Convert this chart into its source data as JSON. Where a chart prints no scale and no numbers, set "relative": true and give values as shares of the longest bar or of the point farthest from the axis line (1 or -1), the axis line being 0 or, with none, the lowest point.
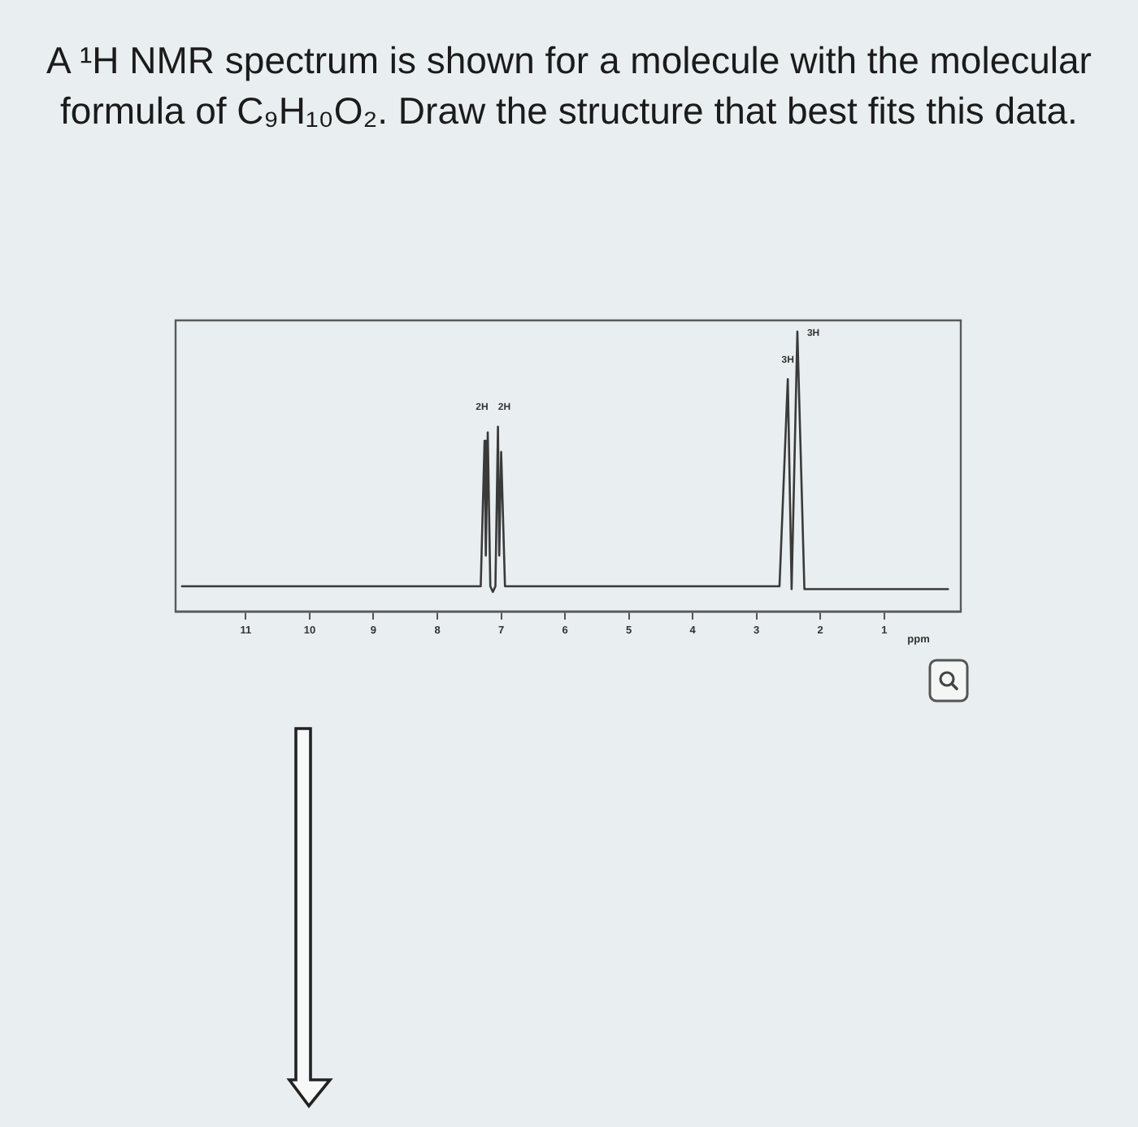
{
  "chart_data": {
    "type": "line",
    "title": "A ¹H NMR spectrum is shown for a molecule with the molecular formula of C₉H₁₀O₂. Draw the structure that best fits this data.",
    "xlabel": "ppm",
    "relative": true,
    "xlim": [
      12.1,
      -0.2
    ],
    "xticks": [
      11,
      10,
      9,
      8,
      7,
      6,
      5,
      4,
      3,
      2,
      1
    ],
    "grid": false,
    "legend": false,
    "marker": "none",
    "series": [
      {
        "color": "#3a3a3a",
        "x": [
          12.0,
          7.32,
          7.26,
          7.24,
          7.21,
          7.17,
          7.13,
          7.09,
          7.05,
          7.03,
          7.0,
          6.94,
          6.9,
          2.64,
          2.51,
          2.45,
          2.36,
          2.25,
          0.0
        ],
        "values": [
          0.09,
          0.09,
          0.61,
          0.2,
          0.64,
          0.09,
          0.07,
          0.09,
          0.66,
          0.2,
          0.57,
          0.09,
          0.09,
          0.09,
          0.83,
          0.08,
          1,
          0.08,
          0.08
        ]
      }
    ],
    "annotations": [
      {
        "text": "2H",
        "x": 7.3,
        "y": 0.66
      },
      {
        "text": "2H",
        "x": 6.95,
        "y": 0.66
      },
      {
        "text": "3H",
        "x": 2.51,
        "y": 0.83
      },
      {
        "text": "3H",
        "x": 2.36,
        "y": 1
      }
    ]
  }
}
